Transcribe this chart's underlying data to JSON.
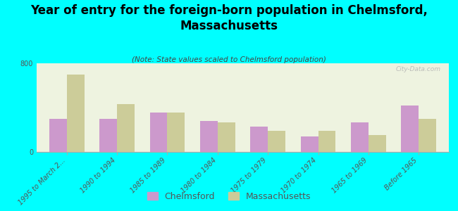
{
  "title": "Year of entry for the foreign-born population in Chelmsford,\nMassachusetts",
  "subtitle": "(Note: State values scaled to Chelmsford population)",
  "categories": [
    "1995 to March 2...",
    "1990 to 1994",
    "1985 to 1989",
    "1980 to 1984",
    "1975 to 1979",
    "1970 to 1974",
    "1965 to 1969",
    "Before 1965"
  ],
  "chelmsford": [
    300,
    300,
    355,
    280,
    230,
    140,
    265,
    420
  ],
  "massachusetts": [
    700,
    430,
    355,
    265,
    190,
    190,
    155,
    300
  ],
  "ylim": [
    0,
    800
  ],
  "bar_color_chelmsford": "#cc99cc",
  "bar_color_massachusetts": "#cccc99",
  "background_color": "#00ffff",
  "plot_bg": "#eef3e0",
  "legend_chelmsford": "Chelmsford",
  "legend_massachusetts": "Massachusetts",
  "watermark": "City-Data.com",
  "title_fontsize": 12,
  "subtitle_fontsize": 7.5,
  "tick_fontsize": 7,
  "legend_fontsize": 9
}
